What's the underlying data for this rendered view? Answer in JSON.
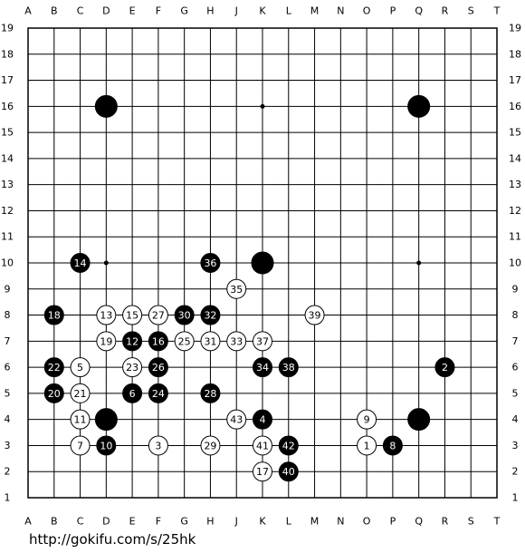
{
  "board": {
    "columns": [
      "A",
      "B",
      "C",
      "D",
      "E",
      "F",
      "G",
      "H",
      "J",
      "K",
      "L",
      "M",
      "N",
      "O",
      "P",
      "Q",
      "R",
      "S",
      "T"
    ],
    "rows": [
      19,
      18,
      17,
      16,
      15,
      14,
      13,
      12,
      11,
      10,
      9,
      8,
      7,
      6,
      5,
      4,
      3,
      2,
      1
    ],
    "stones": [
      {
        "col": "D",
        "row": 16,
        "color": "black"
      },
      {
        "col": "Q",
        "row": 16,
        "color": "black"
      },
      {
        "col": "K",
        "row": 10,
        "color": "black"
      },
      {
        "col": "D",
        "row": 4,
        "color": "black"
      },
      {
        "col": "Q",
        "row": 4,
        "color": "black"
      },
      {
        "col": "C",
        "row": 10,
        "color": "black",
        "label": 14
      },
      {
        "col": "H",
        "row": 10,
        "color": "black",
        "label": 36
      },
      {
        "col": "J",
        "row": 9,
        "color": "white",
        "label": 35
      },
      {
        "col": "B",
        "row": 8,
        "color": "black",
        "label": 18
      },
      {
        "col": "D",
        "row": 8,
        "color": "white",
        "label": 13
      },
      {
        "col": "E",
        "row": 8,
        "color": "white",
        "label": 15
      },
      {
        "col": "F",
        "row": 8,
        "color": "white",
        "label": 27
      },
      {
        "col": "G",
        "row": 8,
        "color": "black",
        "label": 30
      },
      {
        "col": "H",
        "row": 8,
        "color": "black",
        "label": 32
      },
      {
        "col": "M",
        "row": 8,
        "color": "white",
        "label": 39
      },
      {
        "col": "D",
        "row": 7,
        "color": "white",
        "label": 19
      },
      {
        "col": "E",
        "row": 7,
        "color": "black",
        "label": 12
      },
      {
        "col": "F",
        "row": 7,
        "color": "black",
        "label": 16
      },
      {
        "col": "G",
        "row": 7,
        "color": "white",
        "label": 25
      },
      {
        "col": "H",
        "row": 7,
        "color": "white",
        "label": 31
      },
      {
        "col": "J",
        "row": 7,
        "color": "white",
        "label": 33
      },
      {
        "col": "K",
        "row": 7,
        "color": "white",
        "label": 37
      },
      {
        "col": "B",
        "row": 6,
        "color": "black",
        "label": 22
      },
      {
        "col": "C",
        "row": 6,
        "color": "white",
        "label": 5
      },
      {
        "col": "E",
        "row": 6,
        "color": "white",
        "label": 23
      },
      {
        "col": "F",
        "row": 6,
        "color": "black",
        "label": 26
      },
      {
        "col": "K",
        "row": 6,
        "color": "black",
        "label": 34
      },
      {
        "col": "L",
        "row": 6,
        "color": "black",
        "label": 38
      },
      {
        "col": "R",
        "row": 6,
        "color": "black",
        "label": 2
      },
      {
        "col": "B",
        "row": 5,
        "color": "black",
        "label": 20
      },
      {
        "col": "C",
        "row": 5,
        "color": "white",
        "label": 21
      },
      {
        "col": "E",
        "row": 5,
        "color": "black",
        "label": 6
      },
      {
        "col": "F",
        "row": 5,
        "color": "black",
        "label": 24
      },
      {
        "col": "H",
        "row": 5,
        "color": "black",
        "label": 28
      },
      {
        "col": "C",
        "row": 4,
        "color": "white",
        "label": 11
      },
      {
        "col": "J",
        "row": 4,
        "color": "white",
        "label": 43
      },
      {
        "col": "K",
        "row": 4,
        "color": "black",
        "label": 4
      },
      {
        "col": "O",
        "row": 4,
        "color": "white",
        "label": 9
      },
      {
        "col": "C",
        "row": 3,
        "color": "white",
        "label": 7
      },
      {
        "col": "D",
        "row": 3,
        "color": "black",
        "label": 10
      },
      {
        "col": "F",
        "row": 3,
        "color": "white",
        "label": 3
      },
      {
        "col": "H",
        "row": 3,
        "color": "white",
        "label": 29
      },
      {
        "col": "K",
        "row": 3,
        "color": "white",
        "label": 41
      },
      {
        "col": "L",
        "row": 3,
        "color": "black",
        "label": 42
      },
      {
        "col": "O",
        "row": 3,
        "color": "white",
        "label": 1
      },
      {
        "col": "P",
        "row": 3,
        "color": "black",
        "label": 8
      },
      {
        "col": "K",
        "row": 2,
        "color": "white",
        "label": 17
      },
      {
        "col": "L",
        "row": 2,
        "color": "black",
        "label": 40
      }
    ]
  },
  "footer": {
    "url": "http://gokifu.com/s/25hk"
  }
}
